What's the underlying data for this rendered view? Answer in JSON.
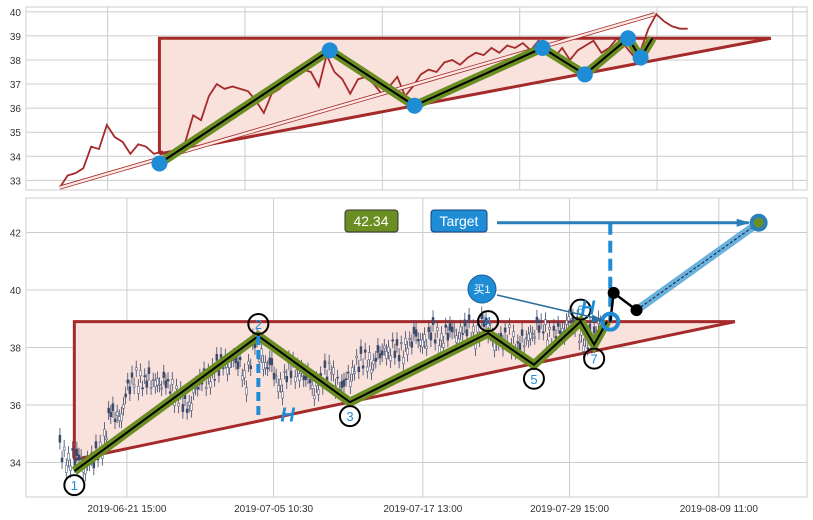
{
  "chart_data": [
    {
      "type": "line",
      "panel": "top",
      "ylim": [
        32.6,
        40.2
      ],
      "yticks": [
        33,
        34,
        35,
        36,
        37,
        38,
        39,
        40
      ],
      "close": [
        32.7,
        33.2,
        33.3,
        33.5,
        34.4,
        34.3,
        35.3,
        34.8,
        34.6,
        34.1,
        34.5,
        34.4,
        34.1,
        34.2,
        34.0,
        34.1,
        34.6,
        35.7,
        35.5,
        36.5,
        37.0,
        36.8,
        36.9,
        36.8,
        36.7,
        36.3,
        35.8,
        36.6,
        36.8,
        37.1,
        37.4,
        37.6,
        37.5,
        36.9,
        38.2,
        37.5,
        37.2,
        36.6,
        37.2,
        37.3,
        37.0,
        36.6,
        36.9,
        37.3,
        36.5,
        36.9,
        37.4,
        37.6,
        37.5,
        37.9,
        38.0,
        37.8,
        38.1,
        38.3,
        38.2,
        38.5,
        38.3,
        38.6,
        38.5,
        38.7,
        38.4,
        38.8,
        38.3,
        38.1,
        38.5,
        38.0,
        38.4,
        38.6,
        38.8,
        38.3,
        38.5,
        38.9,
        38.6,
        38.2,
        38.4,
        39.3,
        39.9,
        39.6,
        39.4,
        39.3,
        39.3
      ],
      "trend_arrow": [
        [
          0,
          32.7
        ],
        [
          75.8,
          39.9
        ]
      ]
    },
    {
      "type": "candlestick",
      "panel": "bottom",
      "ylim": [
        32.8,
        43.2
      ],
      "yticks": [
        34,
        36,
        38,
        40,
        42
      ],
      "xtick_labels": [
        "2019-06-21 15:00",
        "2019-07-05 10:30",
        "2019-07-17 13:00",
        "2019-07-29 15:00",
        "2019-08-09 11:00"
      ],
      "xtick_index": [
        18.9,
        36.2,
        53.8,
        71.1,
        88.7
      ],
      "candle_range": [
        11,
        74
      ],
      "pivot_labels": [
        "1",
        "2",
        "3",
        "4",
        "5",
        "6",
        "7"
      ],
      "height_label": "H",
      "buy_label": "买1",
      "target_label": "Target",
      "target_value": "42.34",
      "target_price": 42.34,
      "breakout": [
        75.9,
        38.9
      ],
      "retest": [
        [
          76.3,
          39.9
        ],
        [
          79,
          39.3
        ]
      ]
    }
  ],
  "pattern": {
    "pivots": [
      [
        12.7,
        33.7
      ],
      [
        34.4,
        38.4
      ],
      [
        45.2,
        36.1
      ],
      [
        61.5,
        38.5
      ],
      [
        66.9,
        37.4
      ],
      [
        72.4,
        38.9
      ],
      [
        74.0,
        38.1
      ]
    ],
    "resistance": 38.9,
    "triangle_start": [
      12.7,
      34.1
    ],
    "triangle_end_index": 90.6,
    "target_index": 93.4
  },
  "colors": {
    "price": "#a52a2a",
    "triangle": "#a52a2a",
    "fill": "#f9e1dc",
    "zigzag": "#6b8e23",
    "pivot": "#1f8dd6",
    "grid": "#cccccc",
    "candle": "#3b4a6b",
    "target_box": "#1f8dd6",
    "value_box": "#6b8e23"
  }
}
